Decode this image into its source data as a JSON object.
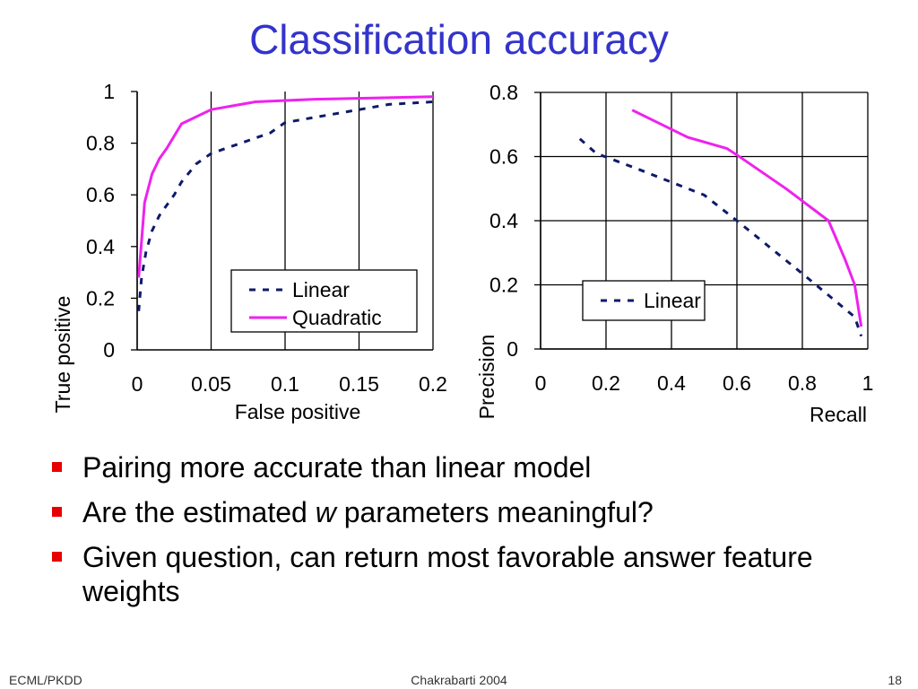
{
  "slide": {
    "title": "Classification accuracy",
    "bullets": [
      {
        "before": "Pairing more accurate than linear model",
        "em": "",
        "after": ""
      },
      {
        "before": "Are the estimated ",
        "em": "w",
        "after": " parameters meaningful?"
      },
      {
        "before": "Given question, can return most favorable answer feature weights",
        "em": "",
        "after": ""
      }
    ],
    "footer": {
      "left": "ECML/PKDD",
      "center": "Chakrabarti 2004",
      "right": "18"
    }
  },
  "colors": {
    "linear": "#0d1a6b",
    "quadratic": "#ee22ee",
    "title": "#3333cc",
    "bullet": "#e80000"
  },
  "chart_data": [
    {
      "type": "line",
      "xlabel": "False positive",
      "ylabel": "True positive",
      "xlim": [
        0,
        0.2
      ],
      "ylim": [
        0,
        1
      ],
      "xticks": [
        "0",
        "0.05",
        "0.1",
        "0.15",
        "0.2"
      ],
      "yticks": [
        "0",
        "0.2",
        "0.4",
        "0.6",
        "0.8",
        "1"
      ],
      "grid": "vertical",
      "legend": "bottom-right",
      "series": [
        {
          "name": "Linear",
          "style": "dashed",
          "color": "#0d1a6b",
          "x": [
            0.001,
            0.003,
            0.006,
            0.01,
            0.015,
            0.02,
            0.025,
            0.03,
            0.04,
            0.05,
            0.07,
            0.09,
            0.1,
            0.12,
            0.15,
            0.17,
            0.2
          ],
          "y": [
            0.15,
            0.28,
            0.38,
            0.46,
            0.52,
            0.56,
            0.6,
            0.65,
            0.72,
            0.76,
            0.8,
            0.84,
            0.88,
            0.9,
            0.93,
            0.95,
            0.96
          ]
        },
        {
          "name": "Quadratic",
          "style": "solid",
          "color": "#ee22ee",
          "x": [
            0.001,
            0.005,
            0.01,
            0.015,
            0.02,
            0.03,
            0.05,
            0.08,
            0.12,
            0.16,
            0.2
          ],
          "y": [
            0.28,
            0.57,
            0.68,
            0.74,
            0.78,
            0.875,
            0.93,
            0.96,
            0.97,
            0.975,
            0.98
          ]
        }
      ]
    },
    {
      "type": "line",
      "xlabel": "Recall",
      "ylabel": "Precision",
      "xlim": [
        0,
        1
      ],
      "ylim": [
        0,
        0.8
      ],
      "xticks": [
        "0",
        "0.2",
        "0.4",
        "0.6",
        "0.8",
        "1"
      ],
      "yticks": [
        "0",
        "0.2",
        "0.4",
        "0.6",
        "0.8"
      ],
      "grid": "both",
      "legend": "right",
      "series": [
        {
          "name": "Linear",
          "style": "dashed",
          "color": "#0d1a6b",
          "x": [
            0.12,
            0.17,
            0.3,
            0.5,
            0.6,
            0.8,
            0.96,
            0.98
          ],
          "y": [
            0.655,
            0.61,
            0.56,
            0.48,
            0.4,
            0.235,
            0.1,
            0.04
          ]
        },
        {
          "name": "",
          "style": "solid",
          "color": "#ee22ee",
          "x": [
            0.28,
            0.45,
            0.57,
            0.6,
            0.75,
            0.88,
            0.93,
            0.96,
            0.98
          ],
          "y": [
            0.745,
            0.66,
            0.625,
            0.605,
            0.5,
            0.4,
            0.28,
            0.2,
            0.07
          ]
        }
      ]
    }
  ]
}
